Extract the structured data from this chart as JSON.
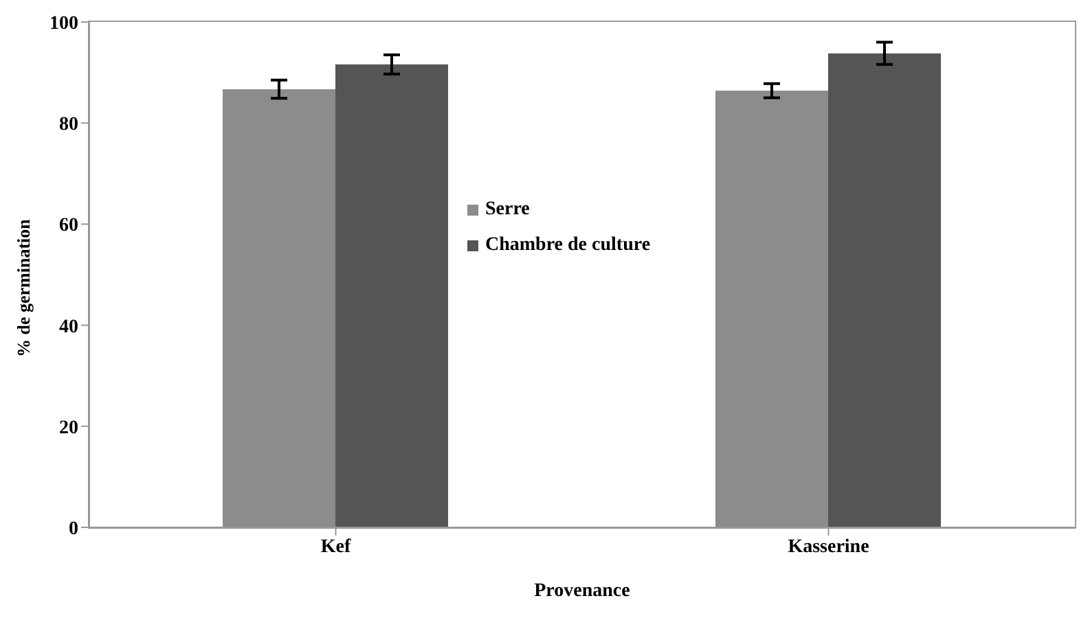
{
  "chart_data": {
    "type": "bar",
    "xlabel": "Provenance",
    "ylabel": "% de germination",
    "categories": [
      "Kef",
      "Kasserine"
    ],
    "series": [
      {
        "name": "Serre",
        "color": "#8c8c8c",
        "values": [
          86.7,
          86.4
        ],
        "errors": [
          1.8,
          1.4
        ]
      },
      {
        "name": "Chambre de culture",
        "color": "#555555",
        "values": [
          91.6,
          93.8
        ],
        "errors": [
          1.9,
          2.2
        ]
      }
    ],
    "ylim": [
      0,
      100
    ],
    "yticks": [
      0,
      20,
      40,
      60,
      80,
      100
    ],
    "grid": false,
    "legend": "center"
  }
}
